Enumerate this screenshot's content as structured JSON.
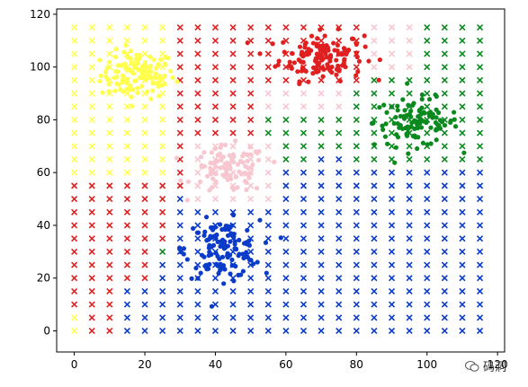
{
  "chart_data": {
    "type": "scatter",
    "xlim": [
      -5,
      122
    ],
    "ylim": [
      -8,
      122
    ],
    "xticks": [
      0,
      20,
      40,
      60,
      80,
      100,
      120
    ],
    "yticks": [
      0,
      20,
      40,
      60,
      80,
      100,
      120
    ],
    "grid": false,
    "colors": {
      "yellow": "#ffff4d",
      "red": "#e02020",
      "pink": "#f7c6cf",
      "green": "#0a8a1e",
      "blue": "#0b3bc9"
    },
    "clusters": [
      {
        "color": "yellow",
        "center": [
          18,
          97
        ],
        "spread": [
          7,
          5
        ],
        "n": 120
      },
      {
        "color": "red",
        "center": [
          70,
          104
        ],
        "spread": [
          8,
          5
        ],
        "n": 140
      },
      {
        "color": "green",
        "center": [
          97,
          79
        ],
        "spread": [
          8,
          5
        ],
        "n": 110
      },
      {
        "color": "pink",
        "center": [
          44,
          61
        ],
        "spread": [
          7,
          5
        ],
        "n": 100
      },
      {
        "color": "blue",
        "center": [
          42,
          31
        ],
        "spread": [
          7,
          6
        ],
        "n": 130
      }
    ],
    "grid_markers": {
      "x_start": 0,
      "x_end": 115,
      "x_step": 5,
      "y_start": 0,
      "y_end": 115,
      "y_step": 5
    }
  },
  "watermark": {
    "text": "码洞",
    "icon": "wechat-icon"
  }
}
